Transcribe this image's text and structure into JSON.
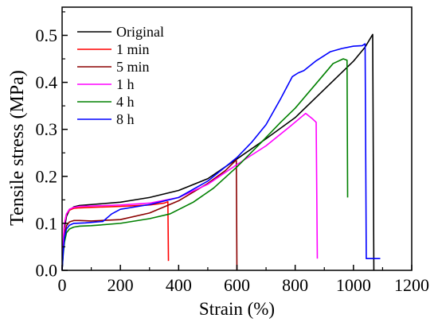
{
  "chart_data": {
    "type": "line",
    "title": "",
    "xlabel": "Strain (%)",
    "ylabel": "Tensile stress (MPa)",
    "xlim": [
      0,
      1200
    ],
    "ylim": [
      0,
      0.56
    ],
    "x_ticks": [
      "0",
      "200",
      "400",
      "600",
      "800",
      "1000",
      "1200"
    ],
    "y_ticks": [
      "0.0",
      "0.1",
      "0.2",
      "0.3",
      "0.4",
      "0.5"
    ],
    "grid": false,
    "legend_position": "top-left",
    "series": [
      {
        "name": "Original",
        "color": "#000000",
        "x": [
          0,
          4,
          8,
          15,
          25,
          40,
          60,
          100,
          200,
          300,
          400,
          500,
          600,
          700,
          800,
          900,
          1000,
          1040,
          1066,
          1070
        ],
        "y": [
          0,
          0.05,
          0.09,
          0.115,
          0.128,
          0.135,
          0.138,
          0.14,
          0.145,
          0.155,
          0.17,
          0.195,
          0.237,
          0.28,
          0.325,
          0.385,
          0.445,
          0.475,
          0.502,
          0
        ]
      },
      {
        "name": "1 min",
        "color": "#ff0000",
        "x": [
          0,
          4,
          8,
          15,
          25,
          40,
          60,
          100,
          200,
          300,
          350,
          363,
          365
        ],
        "y": [
          0,
          0.06,
          0.1,
          0.12,
          0.128,
          0.132,
          0.133,
          0.134,
          0.136,
          0.139,
          0.143,
          0.146,
          0.02
        ]
      },
      {
        "name": "5 min",
        "color": "#8b0000",
        "x": [
          0,
          4,
          8,
          15,
          25,
          40,
          60,
          100,
          200,
          300,
          400,
          500,
          560,
          598,
          600
        ],
        "y": [
          0,
          0.045,
          0.075,
          0.095,
          0.103,
          0.106,
          0.106,
          0.105,
          0.108,
          0.122,
          0.148,
          0.185,
          0.212,
          0.235,
          0
        ]
      },
      {
        "name": "1 h",
        "color": "#ff00ff",
        "x": [
          0,
          4,
          8,
          15,
          25,
          40,
          60,
          100,
          200,
          300,
          400,
          500,
          600,
          700,
          780,
          836,
          860,
          872,
          876
        ],
        "y": [
          0,
          0.06,
          0.1,
          0.12,
          0.13,
          0.134,
          0.136,
          0.137,
          0.139,
          0.143,
          0.155,
          0.183,
          0.225,
          0.265,
          0.305,
          0.334,
          0.322,
          0.315,
          0.025
        ]
      },
      {
        "name": "4 h",
        "color": "#008000",
        "x": [
          0,
          4,
          8,
          15,
          25,
          40,
          60,
          100,
          200,
          300,
          370,
          450,
          520,
          600,
          680,
          750,
          800,
          870,
          930,
          965,
          978,
          980
        ],
        "y": [
          0,
          0.035,
          0.06,
          0.08,
          0.088,
          0.092,
          0.094,
          0.095,
          0.1,
          0.11,
          0.12,
          0.145,
          0.175,
          0.22,
          0.27,
          0.315,
          0.345,
          0.396,
          0.44,
          0.45,
          0.447,
          0.155
        ]
      },
      {
        "name": "8 h",
        "color": "#0000ff",
        "x": [
          0,
          4,
          8,
          15,
          25,
          40,
          80,
          140,
          170,
          200,
          300,
          400,
          500,
          600,
          650,
          700,
          750,
          790,
          810,
          830,
          870,
          920,
          960,
          1000,
          1030,
          1040,
          1044,
          1092
        ],
        "y": [
          0,
          0.04,
          0.07,
          0.088,
          0.096,
          0.1,
          0.101,
          0.104,
          0.12,
          0.13,
          0.14,
          0.155,
          0.19,
          0.24,
          0.272,
          0.31,
          0.365,
          0.412,
          0.42,
          0.425,
          0.445,
          0.465,
          0.472,
          0.477,
          0.478,
          0.482,
          0.025,
          0.025
        ]
      }
    ]
  }
}
